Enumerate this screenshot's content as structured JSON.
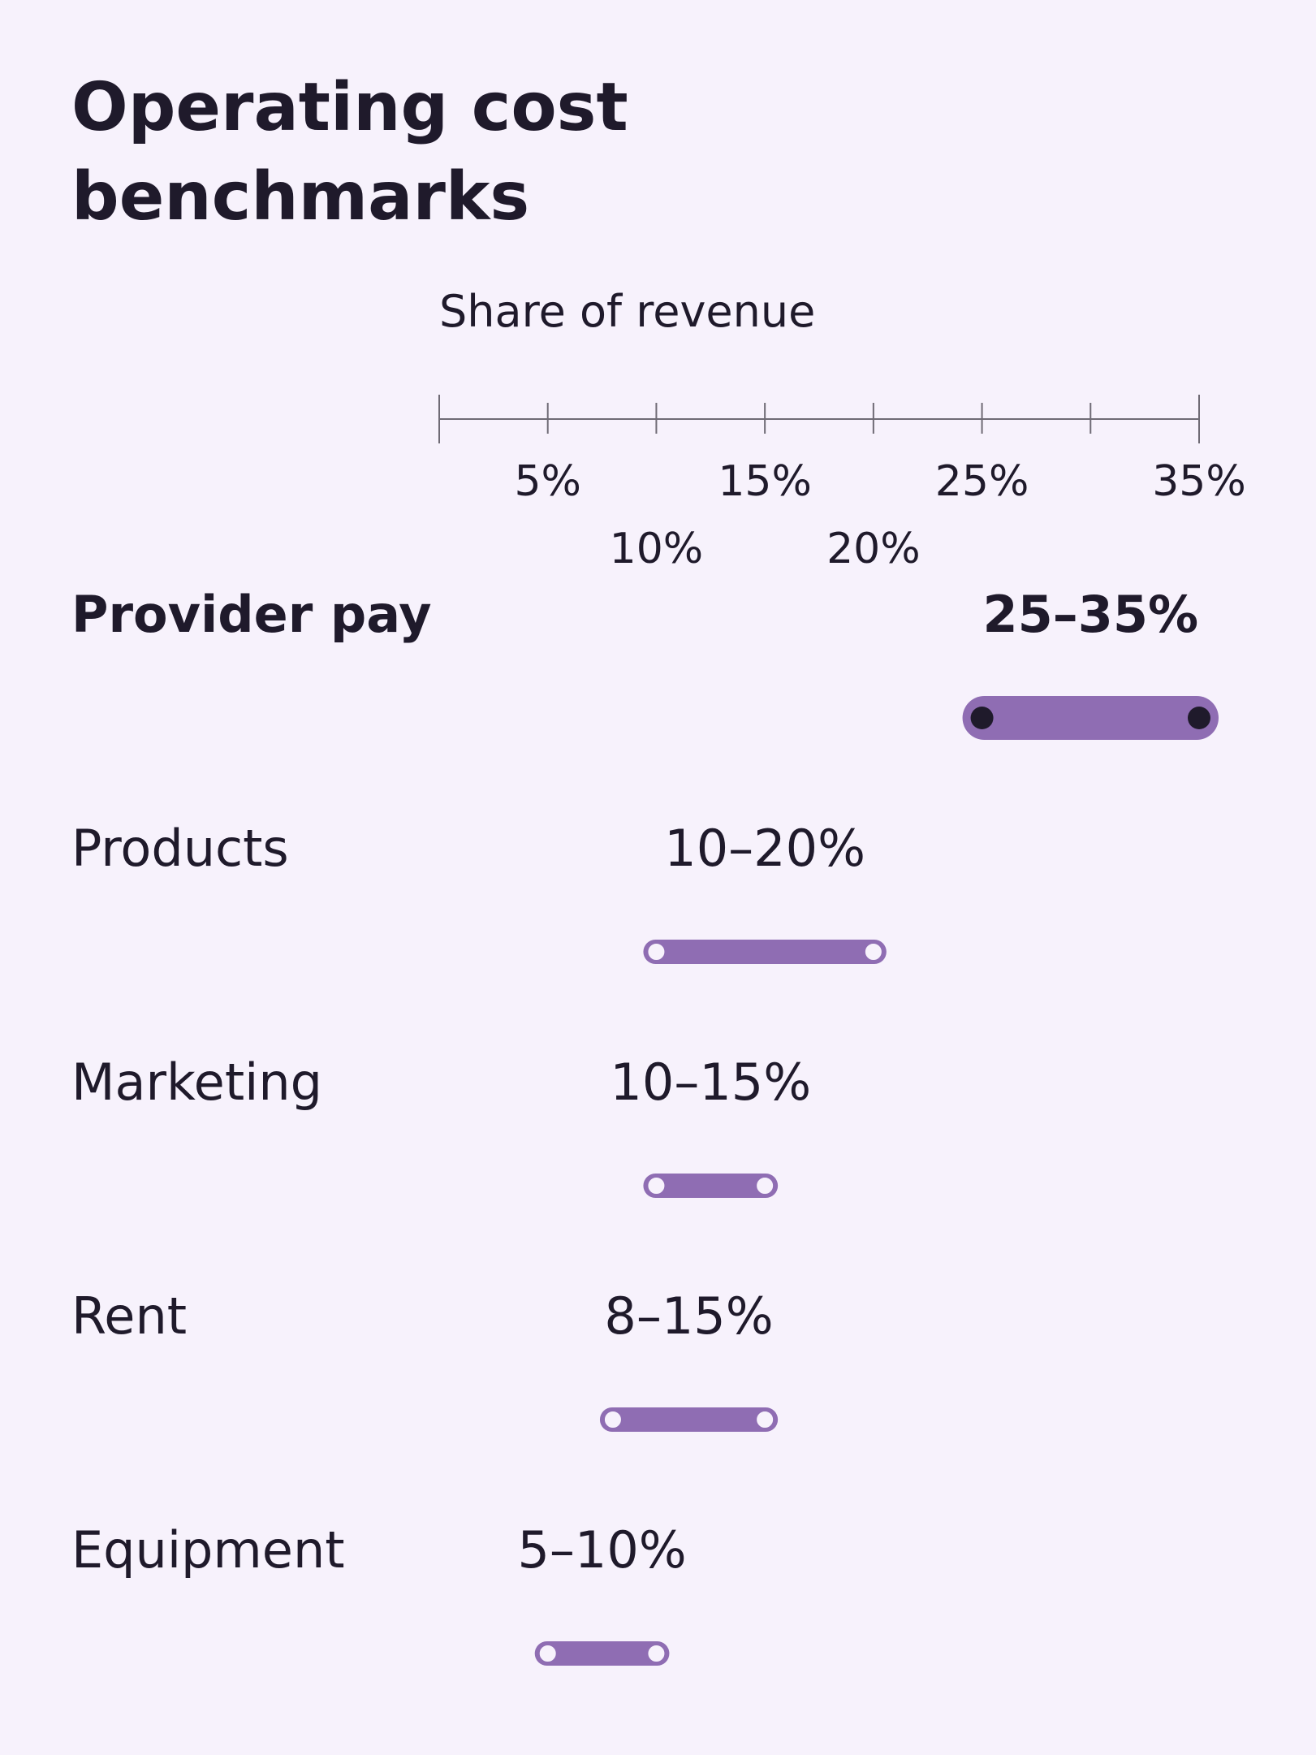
{
  "chart_data": {
    "type": "range",
    "title_lines": [
      "Operating cost",
      "benchmarks"
    ],
    "axis_title": "Share of revenue",
    "xlim": [
      0,
      35
    ],
    "ticks": [
      0,
      5,
      10,
      15,
      20,
      25,
      30,
      35
    ],
    "tick_labels": [
      {
        "value": 5,
        "label": "5%",
        "row": 0
      },
      {
        "value": 15,
        "label": "15%",
        "row": 0
      },
      {
        "value": 25,
        "label": "25%",
        "row": 0
      },
      {
        "value": 35,
        "label": "35%",
        "row": 0
      },
      {
        "value": 10,
        "label": "10%",
        "row": 1
      },
      {
        "value": 20,
        "label": "20%",
        "row": 1
      }
    ],
    "series": [
      {
        "label": "Provider pay",
        "low": 25,
        "high": 35,
        "range_label": "25–35%",
        "highlight": true
      },
      {
        "label": "Products",
        "low": 10,
        "high": 20,
        "range_label": "10–20%",
        "highlight": false
      },
      {
        "label": "Marketing",
        "low": 10,
        "high": 15,
        "range_label": "10–15%",
        "highlight": false
      },
      {
        "label": "Rent",
        "low": 8,
        "high": 15,
        "range_label": "8–15%",
        "highlight": false
      },
      {
        "label": "Equipment",
        "low": 5,
        "high": 10,
        "range_label": "5–10%",
        "highlight": false
      }
    ],
    "colors": {
      "background": "#f7f2fc",
      "accent": "#8f6db3",
      "text": "#1f1a2b",
      "axis": "#6f6b75",
      "dot_dark": "#1f1a2b",
      "dot_light": "#f7f2fc"
    }
  }
}
